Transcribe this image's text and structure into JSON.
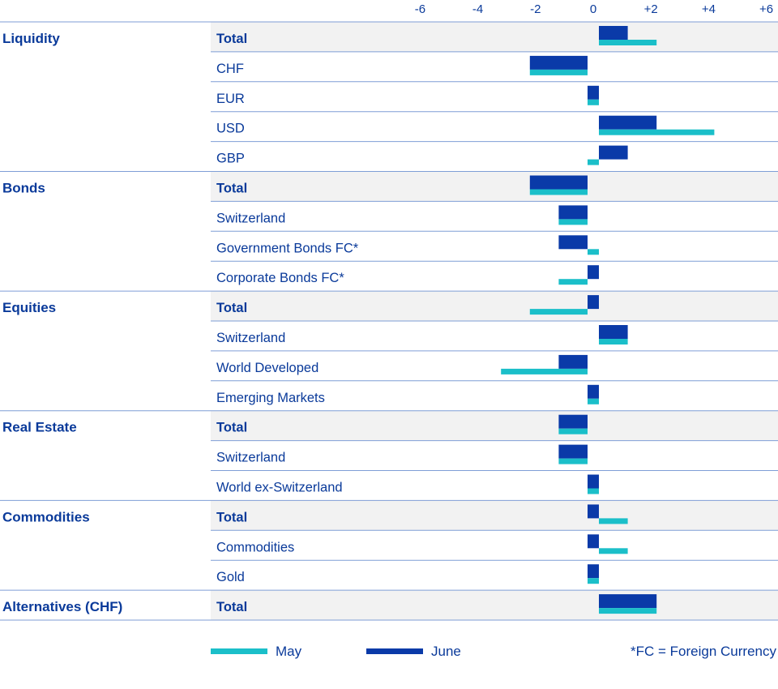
{
  "colors": {
    "may": "#1bbfc9",
    "june": "#0a3aa8",
    "text": "#0a3a9a",
    "row_shade": "#f2f2f2",
    "divider": "#7f9ed6"
  },
  "legend": {
    "may": "May",
    "june": "June",
    "note": "*FC = Foreign Currency"
  },
  "chart_data": {
    "type": "bar",
    "orientation": "horizontal",
    "x_ticks": [
      "-6",
      "-4",
      "-2",
      "0",
      "+2",
      "+4",
      "+6"
    ],
    "xlim": [
      -6,
      6
    ],
    "series": [
      {
        "name": "May",
        "color": "#1bbfc9"
      },
      {
        "name": "June",
        "color": "#0a3aa8"
      }
    ],
    "groups": [
      {
        "name": "Liquidity",
        "rows": [
          {
            "label": "Total",
            "bold": true,
            "may": 2,
            "june": 1
          },
          {
            "label": "CHF",
            "bold": false,
            "may": -2,
            "june": -2
          },
          {
            "label": "EUR",
            "bold": false,
            "may": -0.4,
            "june": -0.4
          },
          {
            "label": "USD",
            "bold": false,
            "may": 4,
            "june": 2
          },
          {
            "label": "GBP",
            "bold": false,
            "may": -0.4,
            "june": 1
          }
        ]
      },
      {
        "name": "Bonds",
        "rows": [
          {
            "label": "Total",
            "bold": true,
            "may": -2,
            "june": -2
          },
          {
            "label": "Switzerland",
            "bold": false,
            "may": -1,
            "june": -1
          },
          {
            "label": "Government Bonds FC*",
            "bold": false,
            "may": 0.4,
            "june": -1
          },
          {
            "label": "Corporate Bonds FC*",
            "bold": false,
            "may": -1,
            "june": 0.4
          }
        ]
      },
      {
        "name": "Equities",
        "rows": [
          {
            "label": "Total",
            "bold": true,
            "may": -2,
            "june": 0.4
          },
          {
            "label": "Switzerland",
            "bold": false,
            "may": 1,
            "june": 1
          },
          {
            "label": "World Developed",
            "bold": false,
            "may": -3,
            "june": -1
          },
          {
            "label": "Emerging Markets",
            "bold": false,
            "may": 0.4,
            "june": 0.4
          }
        ]
      },
      {
        "name": "Real Estate",
        "rows": [
          {
            "label": "Total",
            "bold": true,
            "may": -1,
            "june": -1
          },
          {
            "label": "Switzerland",
            "bold": false,
            "may": -1,
            "june": -1
          },
          {
            "label": "World ex-Switzerland",
            "bold": false,
            "may": 0.4,
            "june": 0.4
          }
        ]
      },
      {
        "name": "Commodities",
        "rows": [
          {
            "label": "Total",
            "bold": true,
            "may": 1,
            "june": 0.4
          },
          {
            "label": "Commodities",
            "bold": false,
            "may": 1,
            "june": 0.4
          },
          {
            "label": "Gold",
            "bold": false,
            "may": 0.4,
            "june": 0.4
          }
        ]
      },
      {
        "name": "Alternatives (CHF)",
        "rows": [
          {
            "label": "Total",
            "bold": true,
            "may": 2,
            "june": 2
          }
        ]
      }
    ]
  }
}
